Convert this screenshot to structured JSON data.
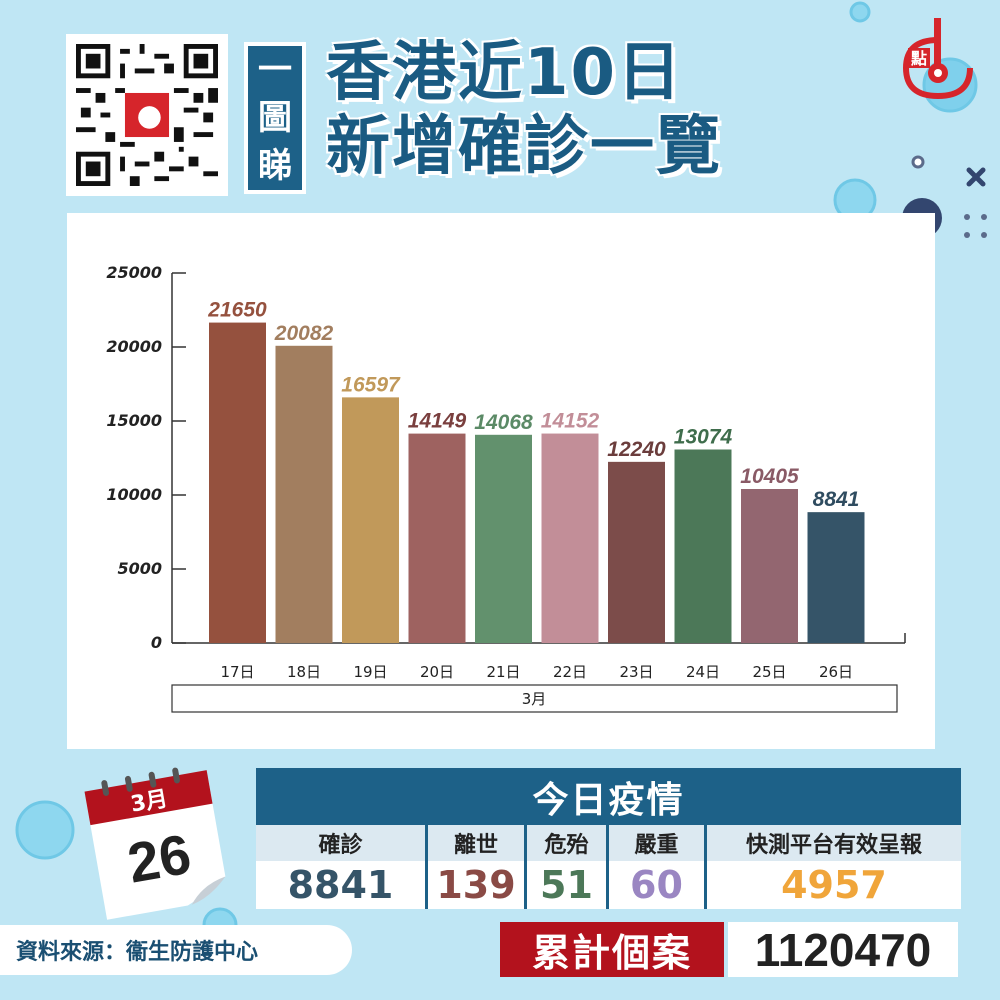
{
  "header": {
    "tag": [
      "一",
      "圖",
      "睇"
    ],
    "title_line1": "香港近10日",
    "title_line2": "新增確診一覽"
  },
  "chart_data": {
    "type": "bar",
    "categories": [
      "17日",
      "18日",
      "19日",
      "20日",
      "21日",
      "22日",
      "23日",
      "24日",
      "25日",
      "26日"
    ],
    "group_label": "3月",
    "values": [
      21650,
      20082,
      16597,
      14149,
      14068,
      14152,
      12240,
      13074,
      10405,
      8841
    ],
    "colors": [
      "#95513e",
      "#a27e5f",
      "#c1995a",
      "#9e6260",
      "#62916d",
      "#c28e98",
      "#7c4c4a",
      "#4c7858",
      "#936670",
      "#355468"
    ],
    "label_colors": [
      "#95513e",
      "#a27e5f",
      "#c1995a",
      "#7a3f3e",
      "#5b8a66",
      "#c28e98",
      "#6b3d3c",
      "#3f6d4c",
      "#8a5a66",
      "#2f4c60"
    ],
    "ylim": [
      0,
      25000
    ],
    "yticks": [
      "0",
      "5000",
      "10000",
      "15000",
      "20000",
      "25000"
    ],
    "xlabel": "",
    "ylabel": "",
    "title": ""
  },
  "calendar": {
    "month": "3月",
    "day": "26"
  },
  "source": "資料來源：衞生防護中心",
  "today": {
    "title": "今日疫情",
    "stats": [
      {
        "label": "確診",
        "value": "8841",
        "color": "#355468"
      },
      {
        "label": "離世",
        "value": "139",
        "color": "#8a4a45"
      },
      {
        "label": "危殆",
        "value": "51",
        "color": "#4c7858"
      },
      {
        "label": "嚴重",
        "value": "60",
        "color": "#9a86c2"
      },
      {
        "label": "快測平台有效呈報",
        "value": "4957",
        "color": "#f0a53a"
      }
    ]
  },
  "cumulative": {
    "label": "累計個案",
    "value": "1120470"
  },
  "colors": {
    "background": "#bfe6f4",
    "accent": "#1d6188",
    "cumulative_red": "#b3121d"
  }
}
